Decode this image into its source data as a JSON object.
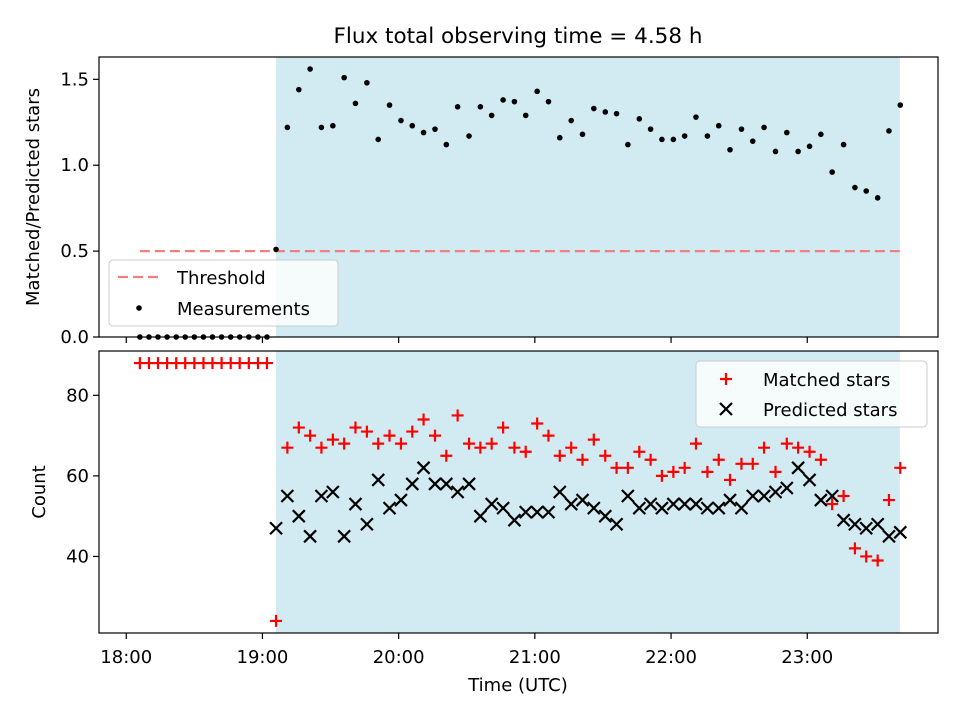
{
  "chart_data": [
    {
      "type": "scatter",
      "title": "Flux total observing time = 4.58 h",
      "ylabel": "Matched/Predicted stars",
      "xlabel": "",
      "xlim": [
        17.8,
        23.96
      ],
      "ylim": [
        0.0,
        1.63
      ],
      "yticks": [
        0.0,
        0.5,
        1.0,
        1.5
      ],
      "ytick_labels": [
        "0.0",
        "0.5",
        "1.0",
        "1.5"
      ],
      "shaded_interval": [
        19.1,
        23.68
      ],
      "shade_color": "#add8e6",
      "grid": false,
      "legend_placement": "lower-left",
      "legend": [
        "Threshold",
        "Measurements"
      ],
      "threshold": {
        "name": "Threshold",
        "y": 0.5,
        "x_range": [
          18.1,
          23.68
        ],
        "color": "#f08080",
        "style": "dashed"
      },
      "series": [
        {
          "name": "Measurements",
          "color": "#000000",
          "marker": "dot",
          "x": [
            18.1,
            18.167,
            18.233,
            18.3,
            18.367,
            18.433,
            18.5,
            18.567,
            18.633,
            18.7,
            18.767,
            18.833,
            18.9,
            18.967,
            19.033,
            19.1,
            19.183,
            19.267,
            19.35,
            19.433,
            19.517,
            19.6,
            19.683,
            19.767,
            19.85,
            19.933,
            20.017,
            20.1,
            20.183,
            20.267,
            20.35,
            20.433,
            20.517,
            20.6,
            20.683,
            20.767,
            20.85,
            20.933,
            21.017,
            21.1,
            21.183,
            21.267,
            21.35,
            21.433,
            21.517,
            21.6,
            21.683,
            21.767,
            21.85,
            21.933,
            22.017,
            22.1,
            22.183,
            22.267,
            22.35,
            22.433,
            22.517,
            22.6,
            22.683,
            22.767,
            22.85,
            22.933,
            23.017,
            23.1,
            23.183,
            23.267,
            23.35,
            23.433,
            23.517,
            23.6,
            23.683
          ],
          "y": [
            0,
            0,
            0,
            0,
            0,
            0,
            0,
            0,
            0,
            0,
            0,
            0,
            0,
            0,
            0,
            0.51,
            1.22,
            1.44,
            1.56,
            1.22,
            1.23,
            1.51,
            1.36,
            1.48,
            1.15,
            1.35,
            1.26,
            1.23,
            1.19,
            1.21,
            1.12,
            1.34,
            1.17,
            1.34,
            1.29,
            1.38,
            1.37,
            1.29,
            1.43,
            1.37,
            1.16,
            1.26,
            1.18,
            1.33,
            1.31,
            1.3,
            1.12,
            1.27,
            1.21,
            1.15,
            1.15,
            1.17,
            1.28,
            1.17,
            1.23,
            1.09,
            1.21,
            1.14,
            1.22,
            1.08,
            1.19,
            1.08,
            1.11,
            1.18,
            0.96,
            1.12,
            0.87,
            0.85,
            0.81,
            1.2,
            1.35
          ]
        }
      ]
    },
    {
      "type": "scatter",
      "title": "",
      "ylabel": "Count",
      "xlabel": "Time (UTC)",
      "xlim": [
        17.8,
        23.96
      ],
      "ylim": [
        21,
        91
      ],
      "xticks": [
        18,
        19,
        20,
        21,
        22,
        23
      ],
      "xtick_labels": [
        "18:00",
        "19:00",
        "20:00",
        "21:00",
        "22:00",
        "23:00"
      ],
      "yticks": [
        40,
        60,
        80
      ],
      "ytick_labels": [
        "40",
        "60",
        "80"
      ],
      "shaded_interval": [
        19.1,
        23.68
      ],
      "shade_color": "#add8e6",
      "grid": false,
      "legend_placement": "top-right",
      "legend": [
        "Matched stars",
        "Predicted stars"
      ],
      "series": [
        {
          "name": "Matched stars",
          "color": "#ff0000",
          "marker": "plus",
          "x": [
            18.1,
            18.167,
            18.233,
            18.3,
            18.367,
            18.433,
            18.5,
            18.567,
            18.633,
            18.7,
            18.767,
            18.833,
            18.9,
            18.967,
            19.033,
            19.1,
            19.183,
            19.267,
            19.35,
            19.433,
            19.517,
            19.6,
            19.683,
            19.767,
            19.85,
            19.933,
            20.017,
            20.1,
            20.183,
            20.267,
            20.35,
            20.433,
            20.517,
            20.6,
            20.683,
            20.767,
            20.85,
            20.933,
            21.017,
            21.1,
            21.183,
            21.267,
            21.35,
            21.433,
            21.517,
            21.6,
            21.683,
            21.767,
            21.85,
            21.933,
            22.017,
            22.1,
            22.183,
            22.267,
            22.35,
            22.433,
            22.517,
            22.6,
            22.683,
            22.767,
            22.85,
            22.933,
            23.017,
            23.1,
            23.183,
            23.267,
            23.35,
            23.433,
            23.517,
            23.6,
            23.683
          ],
          "y": [
            88,
            88,
            88,
            88,
            88,
            88,
            88,
            88,
            88,
            88,
            88,
            88,
            88,
            88,
            88,
            24,
            67,
            72,
            70,
            67,
            69,
            68,
            72,
            71,
            68,
            70,
            68,
            71,
            74,
            70,
            65,
            75,
            68,
            67,
            68,
            72,
            67,
            66,
            73,
            70,
            65,
            67,
            64,
            69,
            65,
            62,
            62,
            66,
            64,
            60,
            61,
            62,
            68,
            61,
            64,
            59,
            63,
            63,
            67,
            61,
            68,
            67,
            66,
            64,
            53,
            55,
            42,
            40,
            39,
            54,
            62
          ]
        },
        {
          "name": "Predicted stars",
          "color": "#000000",
          "marker": "x",
          "x": [
            19.1,
            19.183,
            19.267,
            19.35,
            19.433,
            19.517,
            19.6,
            19.683,
            19.767,
            19.85,
            19.933,
            20.017,
            20.1,
            20.183,
            20.267,
            20.35,
            20.433,
            20.517,
            20.6,
            20.683,
            20.767,
            20.85,
            20.933,
            21.017,
            21.1,
            21.183,
            21.267,
            21.35,
            21.433,
            21.517,
            21.6,
            21.683,
            21.767,
            21.85,
            21.933,
            22.017,
            22.1,
            22.183,
            22.267,
            22.35,
            22.433,
            22.517,
            22.6,
            22.683,
            22.767,
            22.85,
            22.933,
            23.017,
            23.1,
            23.183,
            23.267,
            23.35,
            23.433,
            23.517,
            23.6,
            23.683
          ],
          "y": [
            47,
            55,
            50,
            45,
            55,
            56,
            45,
            53,
            48,
            59,
            52,
            54,
            58,
            62,
            58,
            58,
            56,
            58,
            50,
            53,
            52,
            49,
            51,
            51,
            51,
            56,
            53,
            54,
            52,
            50,
            48,
            55,
            52,
            53,
            52,
            53,
            53,
            53,
            52,
            52,
            54,
            52,
            55,
            55,
            56,
            57,
            62,
            59,
            54,
            55,
            49,
            48,
            47,
            48,
            45,
            46
          ]
        }
      ]
    }
  ]
}
